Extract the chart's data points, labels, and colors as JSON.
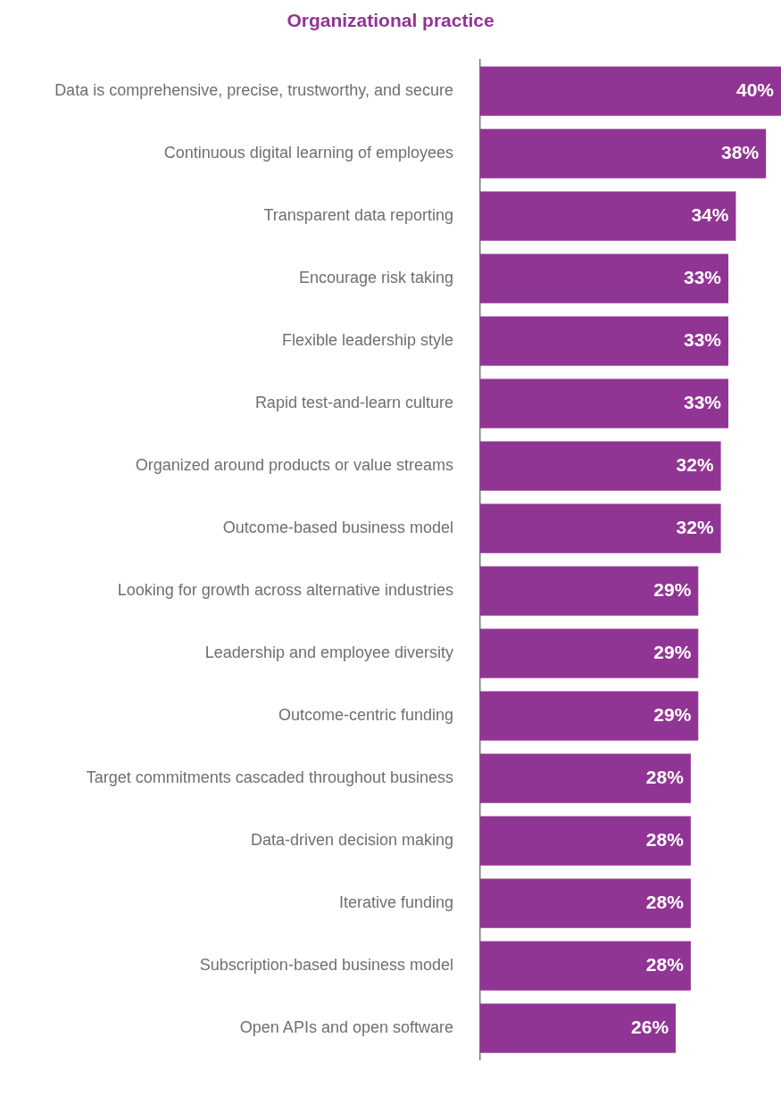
{
  "chart_data": {
    "type": "bar",
    "orientation": "horizontal",
    "title": "Organizational practice",
    "categories": [
      "Data is comprehensive, precise, trustworthy, and secure",
      "Continuous digital learning of employees",
      "Transparent data reporting",
      "Encourage risk taking",
      "Flexible leadership style",
      "Rapid test-and-learn culture",
      "Organized around products or value streams",
      "Outcome-based business model",
      "Looking for growth across alternative industries",
      "Leadership and employee diversity",
      "Outcome-centric funding",
      "Target commitments cascaded throughout business",
      "Data-driven decision making",
      "Iterative funding",
      "Subscription-based business model",
      "Open APIs and open software"
    ],
    "values": [
      40,
      38,
      34,
      33,
      33,
      33,
      32,
      32,
      29,
      29,
      29,
      28,
      28,
      28,
      28,
      26
    ],
    "value_labels": [
      "40%",
      "38%",
      "34%",
      "33%",
      "33%",
      "33%",
      "32%",
      "32%",
      "29%",
      "29%",
      "29%",
      "28%",
      "28%",
      "28%",
      "28%",
      "26%"
    ],
    "color": "#913594",
    "grid": false,
    "legend": false
  }
}
